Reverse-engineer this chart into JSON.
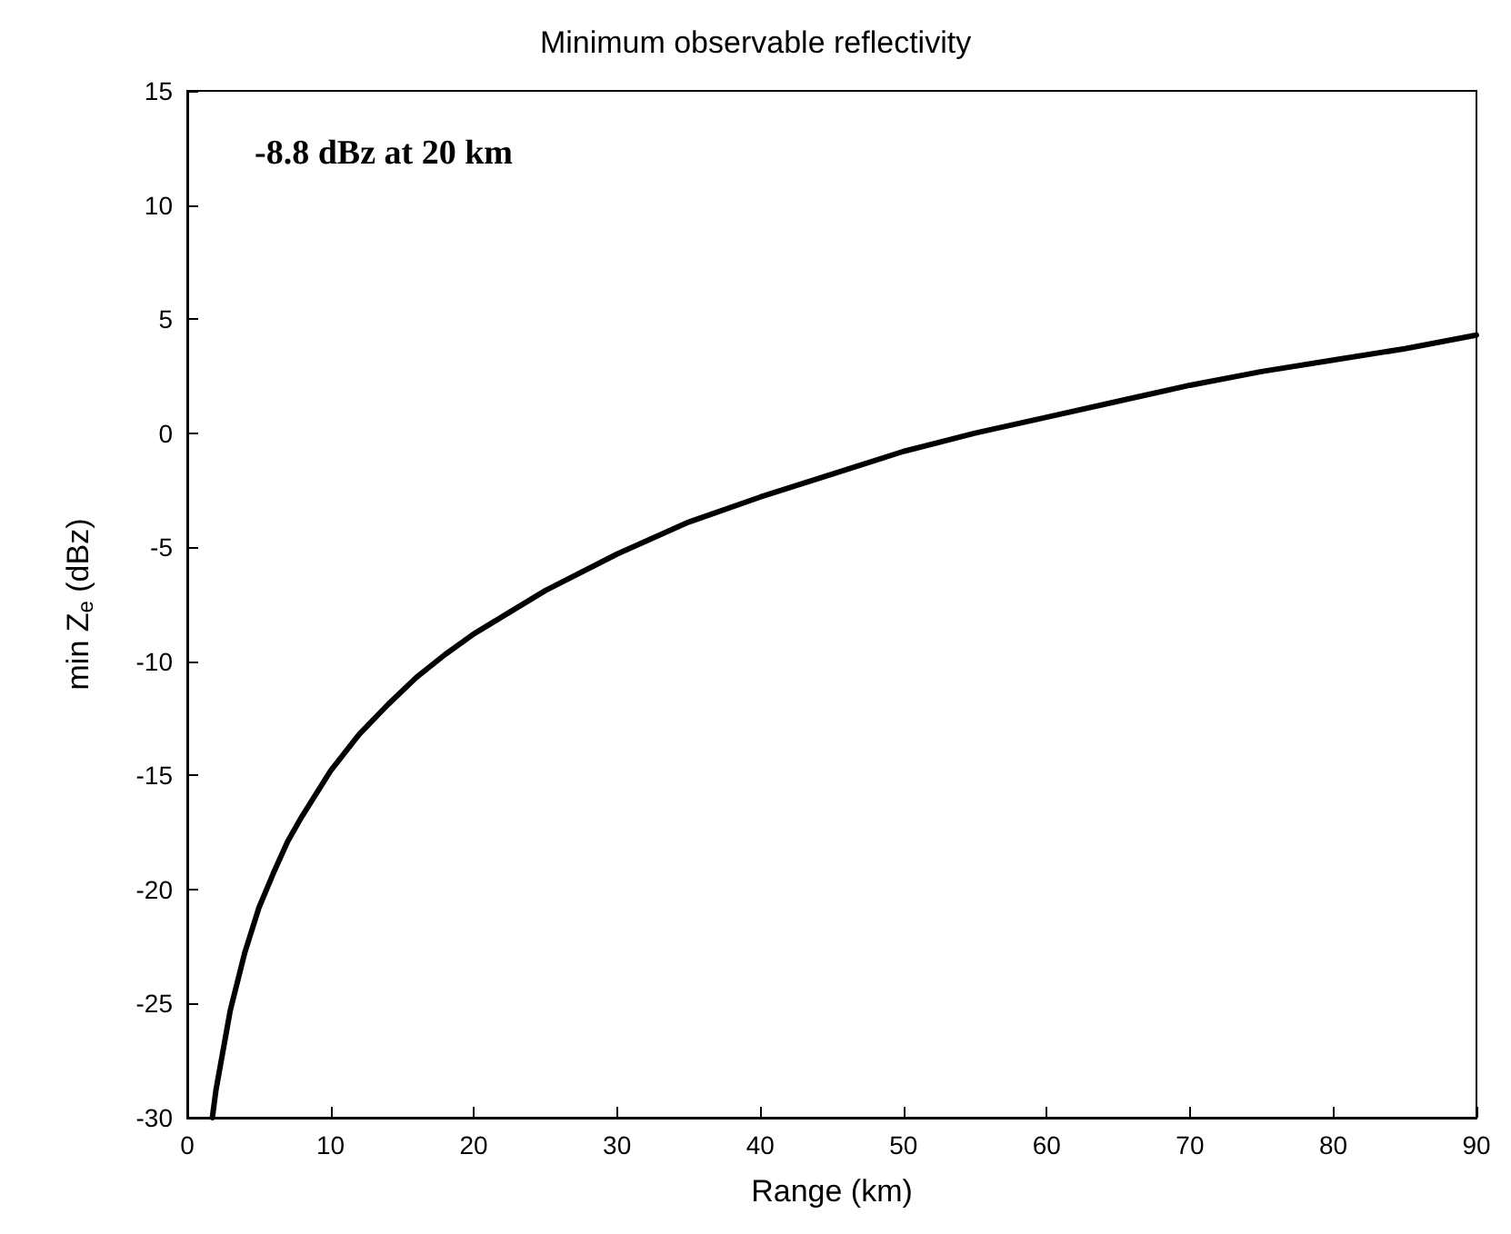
{
  "chart_data": {
    "type": "line",
    "title": "Minimum observable reflectivity",
    "xlabel": "Range (km)",
    "ylabel": "min Z$_{e}$ (dBz)",
    "annotations": [
      "-8.8 dBz at 20 km"
    ],
    "series": [
      {
        "color": "#000000",
        "x": [
          1.75,
          2,
          3,
          4,
          5,
          6,
          7,
          8,
          10,
          12,
          14,
          16,
          18,
          20,
          25,
          30,
          35,
          40,
          45,
          50,
          55,
          60,
          65,
          70,
          75,
          80,
          85,
          90
        ],
        "values": [
          -30.0,
          -28.8,
          -25.3,
          -22.8,
          -20.8,
          -19.3,
          -17.9,
          -16.8,
          -14.8,
          -13.2,
          -11.9,
          -10.7,
          -9.7,
          -8.8,
          -6.9,
          -5.3,
          -3.9,
          -2.8,
          -1.8,
          -0.8,
          0.0,
          0.7,
          1.4,
          2.1,
          2.7,
          3.2,
          3.7,
          4.3
        ]
      }
    ],
    "xlim": [
      0,
      90
    ],
    "xticks": [
      0,
      10,
      20,
      30,
      40,
      50,
      60,
      70,
      80,
      90
    ],
    "ylim": [
      -30,
      15
    ],
    "yticks": [
      -30,
      -25,
      -20,
      -15,
      -10,
      -5,
      0,
      5,
      10,
      15
    ],
    "grid": false,
    "marker": "none",
    "line_style": "solid"
  }
}
